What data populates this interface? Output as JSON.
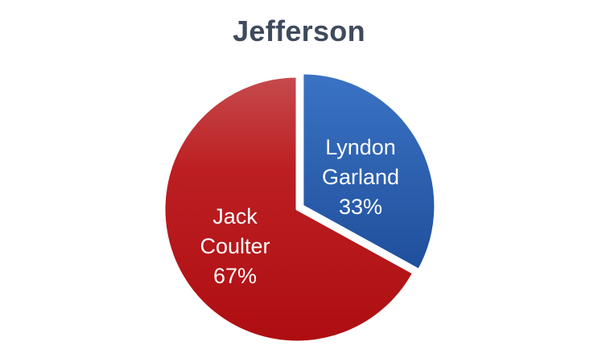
{
  "chart_data": {
    "type": "pie",
    "title": "Jefferson",
    "slices": [
      {
        "name_lines": [
          "Lyndon",
          "Garland"
        ],
        "value": 33,
        "value_label": "33%",
        "color": "#2f64b4"
      },
      {
        "name_lines": [
          "Jack",
          "Coulter"
        ],
        "value": 67,
        "value_label": "67%",
        "color": "#b81418"
      }
    ],
    "start_angle_deg": 0,
    "direction": "clockwise",
    "legend": "none"
  }
}
